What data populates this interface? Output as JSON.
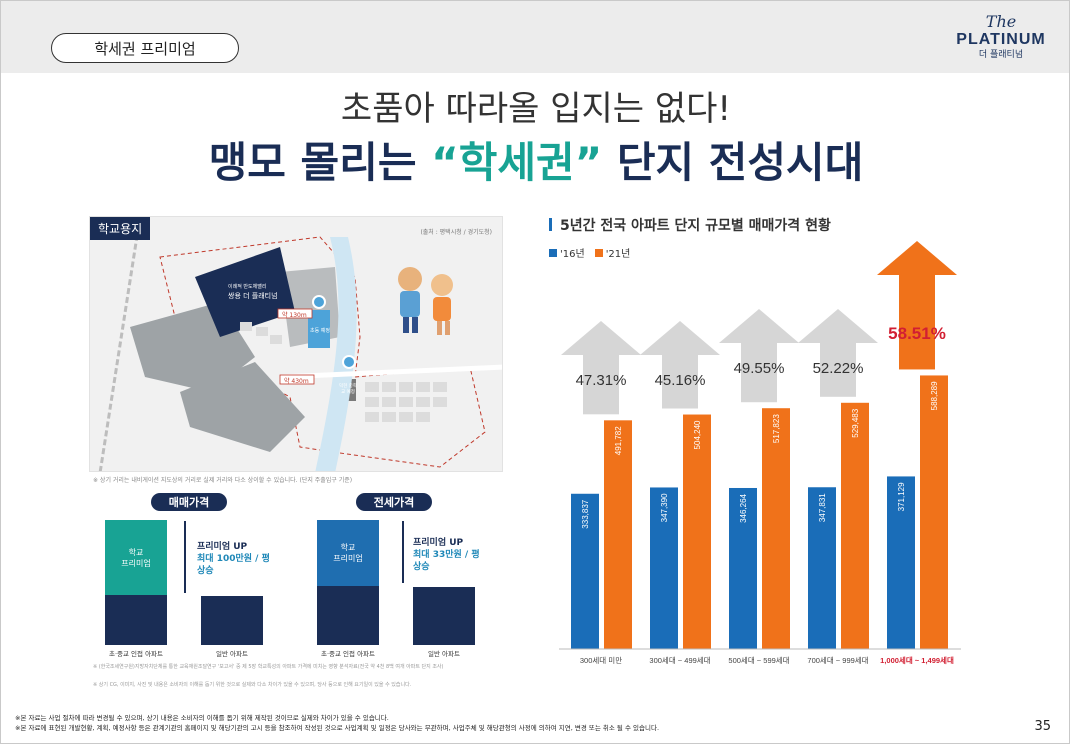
{
  "header": {
    "section_label": "학세권 프리미엄",
    "logo_script": "The",
    "logo_main": "PLATINUM",
    "logo_sub": "더 플래티넘"
  },
  "headline": {
    "line1": "초품아 따라올 입지는 없다!",
    "line2_before": "맹모 몰리는 ",
    "line2_accent": "“학세권”",
    "line2_after": " 단지 전성시대"
  },
  "map": {
    "tag": "학교용지",
    "source": "(출처 : 평택시청 / 경기도청)",
    "complex_label_small": "이례적 반도체밸리",
    "complex_label": "쌍용 더 플래티넘",
    "distance1": "약 130m",
    "distance2": "약 430m",
    "school1": "초등 예정",
    "school2": "덕현 중학교 예정",
    "note": "※ 상기 거리는 내비게이션 지도상의 거리로 실제 거리와 다소 상이할 수 있습니다. (단지 주출입구 기준)"
  },
  "comparison": {
    "sale": {
      "title": "매매가격",
      "premium_box": "학교\n프리미엄",
      "premium_up": "프리미엄 UP",
      "premium_amount": "최대 100만원 / 평",
      "premium_rise": "상승",
      "label_a": "초·중교 인접 아파트",
      "label_b": "일반 아파트"
    },
    "lease": {
      "title": "전세가격",
      "premium_box": "학교\n프리미엄",
      "premium_up": "프리미엄 UP",
      "premium_amount": "최대 33만원 / 평",
      "premium_rise": "상승",
      "label_a": "초·중교 인접 아파트",
      "label_b": "일반 아파트"
    },
    "note1": "※ (한국조세연구원)지방자치단체를 통한 교육재원조달연구 '보고서' 중 제 5장 학교특성의 아파트 가격에 미치는 영향 분석자료(전국 약 4천 8백 여개 아파트 단지 조사)",
    "note2": "※ 상기 CG, 이미지, 사진 및 내용은 소비자의 이해를 돕기 위한 것으로 실제와 다소 차이가 있을 수 있으며, 당사 등으로 인해 요기일이 있을 수 있습니다."
  },
  "chart_data": {
    "type": "bar",
    "title": "5년간 전국 아파트 단지 규모별 매매가격 현황",
    "categories": [
      "300세대 미만",
      "300세대 ~ 499세대",
      "500세대 ~ 599세대",
      "700세대 ~ 999세대",
      "1,000세대 ~ 1,499세대"
    ],
    "series": [
      {
        "name": "'16년",
        "color": "#1a6db8",
        "values": [
          333837,
          347390,
          346264,
          347831,
          371129
        ]
      },
      {
        "name": "'21년",
        "color": "#f0721a",
        "values": [
          491782,
          504240,
          517823,
          529483,
          588289
        ]
      }
    ],
    "value_labels": {
      "s16": [
        "333,837",
        "347,390",
        "346,264",
        "347,831",
        "371,129"
      ],
      "s21": [
        "491,782",
        "504,240",
        "517,823",
        "529,483",
        "588,289"
      ]
    },
    "growth_labels": [
      "47.31%",
      "45.16%",
      "49.55%",
      "52.22%",
      "58.51%"
    ],
    "highlight_index": 4,
    "highlight_color": "#d21f32"
  },
  "footer": {
    "line1": "※본 자료는 사업 절차에 따라 변경될 수 있으며, 상기 내용은 소비자의 이해를 돕기 위해 제작된 것이므로 실제와 차이가 있을 수 있습니다.",
    "line2": "※본 자료에 표현된 개발현황, 계획, 예정사항 등은 관계기관의 홈페이지 및 해당기관의 고시 등을 참조하여 작성된 것으로 사업계획 및 일정은 당사와는 무관하며, 사업주체 및 해당관청의 사정에 의하여 지연, 변경 또는 취소 될 수 있습니다.",
    "page_number": "35"
  }
}
